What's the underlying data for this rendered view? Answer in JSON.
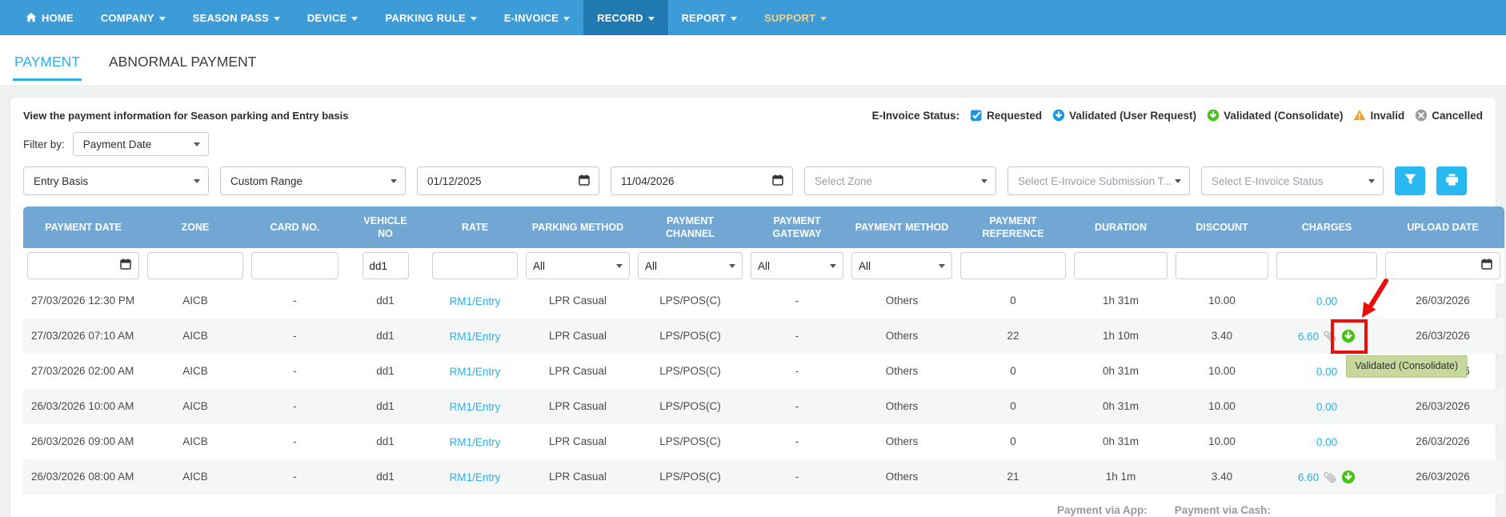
{
  "nav": {
    "items": [
      {
        "label": "HOME",
        "icon": "home-icon"
      },
      {
        "label": "COMPANY",
        "caret": true
      },
      {
        "label": "SEASON PASS",
        "caret": true
      },
      {
        "label": "DEVICE",
        "caret": true
      },
      {
        "label": "PARKING RULE",
        "caret": true
      },
      {
        "label": "E-INVOICE",
        "caret": true
      },
      {
        "label": "RECORD",
        "caret": true,
        "active": true
      },
      {
        "label": "REPORT",
        "caret": true
      },
      {
        "label": "SUPPORT",
        "caret": true,
        "highlight": true
      }
    ]
  },
  "tabs": [
    {
      "label": "PAYMENT",
      "active": true
    },
    {
      "label": "ABNORMAL PAYMENT",
      "active": false
    }
  ],
  "panel": {
    "description": "View the payment information for Season parking and Entry basis",
    "einvoice_legend": {
      "label": "E-Invoice Status:",
      "items": [
        {
          "label": "Requested",
          "icon": "requested-check-icon",
          "color": "#1b96e3"
        },
        {
          "label": "Validated (User Request)",
          "icon": "validated-user-request-icon",
          "color": "#1b96e3"
        },
        {
          "label": "Validated (Consolidate)",
          "icon": "validated-consolidate-icon",
          "color": "#45c414"
        },
        {
          "label": "Invalid",
          "icon": "invalid-warning-icon",
          "color": "#f2a227"
        },
        {
          "label": "Cancelled",
          "icon": "cancelled-icon",
          "color": "#9a9a9a"
        }
      ]
    },
    "filter_by": {
      "label": "Filter by:",
      "value": "Payment Date"
    },
    "filters": [
      {
        "type": "select",
        "name": "basis-select",
        "value": "Entry Basis"
      },
      {
        "type": "select",
        "name": "date-range-select",
        "value": "Custom Range"
      },
      {
        "type": "date",
        "name": "start-date-input",
        "value": "01/12/2025"
      },
      {
        "type": "date",
        "name": "end-date-input",
        "value": "11/04/2026"
      },
      {
        "type": "select",
        "name": "zone-select",
        "value": "Select Zone",
        "muted": true
      },
      {
        "type": "select",
        "name": "einvoice-submission-type-select",
        "value": "Select E-Invoice Submission T...",
        "muted": true
      },
      {
        "type": "select",
        "name": "einvoice-status-select",
        "value": "Select E-Invoice Status",
        "muted": true
      }
    ]
  },
  "table": {
    "columns": [
      "PAYMENT DATE",
      "ZONE",
      "CARD NO.",
      "VEHICLE\nNO",
      "RATE",
      "PARKING METHOD",
      "PAYMENT\nCHANNEL",
      "PAYMENT\nGATEWAY",
      "PAYMENT METHOD",
      "PAYMENT\nREFERENCE",
      "DURATION",
      "DISCOUNT",
      "CHARGES",
      "UPLOAD DATE"
    ],
    "search_row": [
      {
        "type": "date",
        "name": "payment-date-filter"
      },
      {
        "type": "text",
        "name": "zone-filter"
      },
      {
        "type": "text",
        "name": "card-no-filter"
      },
      {
        "type": "text",
        "name": "vehicle-no-filter",
        "value": "dd1",
        "narrow": true
      },
      {
        "type": "text",
        "name": "rate-filter"
      },
      {
        "type": "select",
        "name": "parking-method-filter",
        "value": "All"
      },
      {
        "type": "select",
        "name": "payment-channel-filter",
        "value": "All"
      },
      {
        "type": "select",
        "name": "payment-gateway-filter",
        "value": "All"
      },
      {
        "type": "select",
        "name": "payment-method-filter",
        "value": "All"
      },
      {
        "type": "text",
        "name": "payment-reference-filter"
      },
      {
        "type": "text",
        "name": "duration-filter"
      },
      {
        "type": "text",
        "name": "discount-filter"
      },
      {
        "type": "text",
        "name": "charges-filter"
      },
      {
        "type": "date",
        "name": "upload-date-filter"
      }
    ],
    "rows": [
      {
        "cells": [
          "27/03/2026 12:30 PM",
          "AICB",
          "-",
          "dd1",
          {
            "text": "RM1/Entry",
            "link": true
          },
          "LPR Casual",
          "LPS/POS(C)",
          "-",
          "Others",
          "0",
          "1h 31m",
          "10.00",
          {
            "text": "0.00",
            "link": true
          },
          "26/03/2026"
        ]
      },
      {
        "cells": [
          "27/03/2026 07:10 AM",
          "AICB",
          "-",
          "dd1",
          {
            "text": "RM1/Entry",
            "link": true
          },
          "LPR Casual",
          "LPS/POS(C)",
          "-",
          "Others",
          "22",
          "1h 10m",
          "3.40",
          {
            "text": "6.60",
            "link": true,
            "icons": [
              "paperclip-icon",
              "validated-consolidate-icon"
            ],
            "annotated": true
          },
          "26/03/2026"
        ]
      },
      {
        "cells": [
          "27/03/2026 02:00 AM",
          "AICB",
          "-",
          "dd1",
          {
            "text": "RM1/Entry",
            "link": true
          },
          "LPR Casual",
          "LPS/POS(C)",
          "-",
          "Others",
          "0",
          "0h 31m",
          "10.00",
          {
            "text": "0.00",
            "link": true
          },
          "26/03/2026"
        ]
      },
      {
        "cells": [
          "26/03/2026 10:00 AM",
          "AICB",
          "-",
          "dd1",
          {
            "text": "RM1/Entry",
            "link": true
          },
          "LPR Casual",
          "LPS/POS(C)",
          "-",
          "Others",
          "0",
          "0h 31m",
          "10.00",
          {
            "text": "0.00",
            "link": true
          },
          "26/03/2026"
        ]
      },
      {
        "cells": [
          "26/03/2026 09:00 AM",
          "AICB",
          "-",
          "dd1",
          {
            "text": "RM1/Entry",
            "link": true
          },
          "LPR Casual",
          "LPS/POS(C)",
          "-",
          "Others",
          "0",
          "0h 31m",
          "10.00",
          {
            "text": "0.00",
            "link": true
          },
          "26/03/2026"
        ]
      },
      {
        "cells": [
          "26/03/2026 08:00 AM",
          "AICB",
          "-",
          "dd1",
          {
            "text": "RM1/Entry",
            "link": true
          },
          "LPR Casual",
          "LPS/POS(C)",
          "-",
          "Others",
          "21",
          "1h 1m",
          "3.40",
          {
            "text": "6.60",
            "link": true,
            "icons": [
              "paperclip-icon",
              "validated-consolidate-icon"
            ]
          },
          "26/03/2026"
        ]
      }
    ],
    "footer": {
      "app_label": "Payment via App:",
      "cash_label": "Payment via Cash:"
    }
  },
  "annotation": {
    "tooltip": "Validated (Consolidate)",
    "rect_color": "#e8100c",
    "tooltip_bg": "#c6d89c"
  },
  "colors": {
    "accent": "#29b9f1",
    "link": "#2bb0e8",
    "table_header": "#72a7d3",
    "nav_bg": "#3c9cd7",
    "nav_active_bg": "#2079b1",
    "support_text": "#f3cf8e",
    "paperclip_gray": "#a6a6a6"
  }
}
